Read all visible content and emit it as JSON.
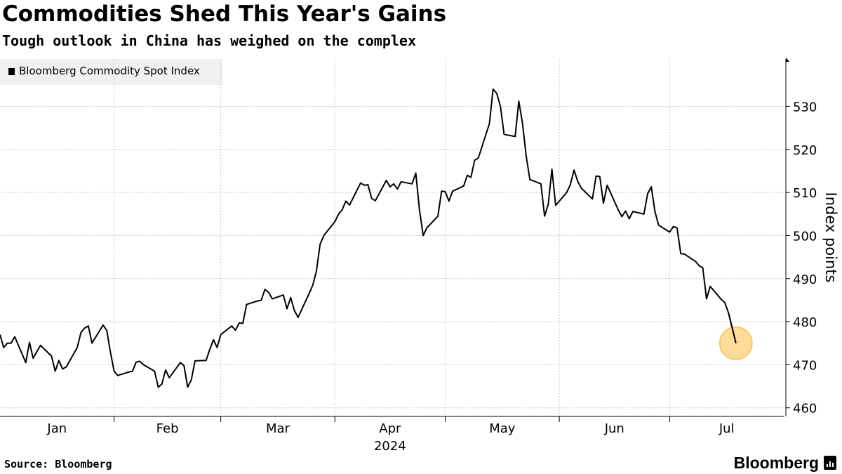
{
  "header": {
    "title": "Commodities Shed This Year's Gains",
    "subtitle": "Tough outlook in China has weighed on the complex"
  },
  "legend": {
    "label": "Bloomberg Commodity Spot Index",
    "color": "#000000"
  },
  "footer": {
    "source": "Source: Bloomberg",
    "brand": "Bloomberg"
  },
  "colors": {
    "line": "#000000",
    "highlight": "#fbbf45",
    "grid": "#c8c8c8"
  },
  "chart_data": {
    "type": "line",
    "ylabel": "Index points",
    "year_label": "2024",
    "ylim": [
      458,
      541
    ],
    "yticks": [
      460,
      470,
      480,
      490,
      500,
      510,
      520,
      530
    ],
    "xlim": [
      "2024-01-01",
      "2024-07-31"
    ],
    "month_ticks": [
      "2024-01-01",
      "2024-02-01",
      "2024-03-01",
      "2024-04-01",
      "2024-05-01",
      "2024-06-01",
      "2024-07-01",
      "2024-08-01"
    ],
    "month_labels": [
      "Jan",
      "Feb",
      "Mar",
      "Apr",
      "May",
      "Jun",
      "Jul"
    ],
    "grid": true,
    "legend_position": "top-left",
    "highlight_last_point": true,
    "series": [
      {
        "name": "Bloomberg Commodity Spot Index",
        "points": [
          [
            "2024-01-01",
            477
          ],
          [
            "2024-01-02",
            474
          ],
          [
            "2024-01-03",
            475
          ],
          [
            "2024-01-04",
            475
          ],
          [
            "2024-01-05",
            476.5
          ],
          [
            "2024-01-08",
            470.5
          ],
          [
            "2024-01-09",
            475.2
          ],
          [
            "2024-01-10",
            471.5
          ],
          [
            "2024-01-11",
            473
          ],
          [
            "2024-01-12",
            474.5
          ],
          [
            "2024-01-15",
            472
          ],
          [
            "2024-01-16",
            468.5
          ],
          [
            "2024-01-17",
            471
          ],
          [
            "2024-01-18",
            469
          ],
          [
            "2024-01-19",
            469.5
          ],
          [
            "2024-01-22",
            474
          ],
          [
            "2024-01-23",
            477.5
          ],
          [
            "2024-01-24",
            478.5
          ],
          [
            "2024-01-25",
            479
          ],
          [
            "2024-01-26",
            475
          ],
          [
            "2024-01-29",
            479.2
          ],
          [
            "2024-01-30",
            478
          ],
          [
            "2024-01-31",
            473
          ],
          [
            "2024-02-01",
            468.5
          ],
          [
            "2024-02-02",
            467.5
          ],
          [
            "2024-02-05",
            468.3
          ],
          [
            "2024-02-06",
            468.5
          ],
          [
            "2024-02-07",
            470.6
          ],
          [
            "2024-02-08",
            470.8
          ],
          [
            "2024-02-09",
            470
          ],
          [
            "2024-02-12",
            468.5
          ],
          [
            "2024-02-13",
            464.8
          ],
          [
            "2024-02-14",
            465.5
          ],
          [
            "2024-02-15",
            468.8
          ],
          [
            "2024-02-16",
            467
          ],
          [
            "2024-02-19",
            470.5
          ],
          [
            "2024-02-20",
            469.8
          ],
          [
            "2024-02-21",
            464.8
          ],
          [
            "2024-02-22",
            466.5
          ],
          [
            "2024-02-23",
            470.9
          ],
          [
            "2024-02-26",
            471
          ],
          [
            "2024-02-27",
            473.5
          ],
          [
            "2024-02-28",
            475.8
          ],
          [
            "2024-02-29",
            474
          ],
          [
            "2024-03-01",
            477
          ],
          [
            "2024-03-04",
            479
          ],
          [
            "2024-03-05",
            478
          ],
          [
            "2024-03-06",
            479.7
          ],
          [
            "2024-03-07",
            479.6
          ],
          [
            "2024-03-08",
            484
          ],
          [
            "2024-03-11",
            484.8
          ],
          [
            "2024-03-12",
            485
          ],
          [
            "2024-03-13",
            487.5
          ],
          [
            "2024-03-14",
            486.8
          ],
          [
            "2024-03-15",
            485.3
          ],
          [
            "2024-03-18",
            486.2
          ],
          [
            "2024-03-19",
            483
          ],
          [
            "2024-03-20",
            485.6
          ],
          [
            "2024-03-21",
            482.6
          ],
          [
            "2024-03-22",
            481
          ],
          [
            "2024-03-25",
            486.5
          ],
          [
            "2024-03-26",
            488.5
          ],
          [
            "2024-03-27",
            491.8
          ],
          [
            "2024-03-28",
            498
          ],
          [
            "2024-03-29",
            500
          ],
          [
            "2024-04-01",
            503.2
          ],
          [
            "2024-04-02",
            505
          ],
          [
            "2024-04-03",
            506
          ],
          [
            "2024-04-04",
            508
          ],
          [
            "2024-04-05",
            507.1
          ],
          [
            "2024-04-08",
            512.2
          ],
          [
            "2024-04-09",
            511.7
          ],
          [
            "2024-04-10",
            511.8
          ],
          [
            "2024-04-11",
            508.6
          ],
          [
            "2024-04-12",
            508.1
          ],
          [
            "2024-04-15",
            512.8
          ],
          [
            "2024-04-16",
            511.3
          ],
          [
            "2024-04-17",
            512
          ],
          [
            "2024-04-18",
            510.8
          ],
          [
            "2024-04-19",
            512.5
          ],
          [
            "2024-04-22",
            512
          ],
          [
            "2024-04-23",
            514.5
          ],
          [
            "2024-04-24",
            506
          ],
          [
            "2024-04-25",
            500
          ],
          [
            "2024-04-26",
            501.8
          ],
          [
            "2024-04-29",
            504.5
          ],
          [
            "2024-04-30",
            510.3
          ],
          [
            "2024-05-01",
            510.2
          ],
          [
            "2024-05-02",
            508
          ],
          [
            "2024-05-03",
            510.3
          ],
          [
            "2024-05-06",
            511.5
          ],
          [
            "2024-05-07",
            514
          ],
          [
            "2024-05-08",
            513.5
          ],
          [
            "2024-05-09",
            517.5
          ],
          [
            "2024-05-10",
            518
          ],
          [
            "2024-05-13",
            526
          ],
          [
            "2024-05-14",
            534
          ],
          [
            "2024-05-15",
            533
          ],
          [
            "2024-05-16",
            530
          ],
          [
            "2024-05-17",
            523.5
          ],
          [
            "2024-05-20",
            523
          ],
          [
            "2024-05-21",
            531.2
          ],
          [
            "2024-05-22",
            526
          ],
          [
            "2024-05-23",
            518.5
          ],
          [
            "2024-05-24",
            513
          ],
          [
            "2024-05-27",
            512
          ],
          [
            "2024-05-28",
            504.5
          ],
          [
            "2024-05-29",
            507.3
          ],
          [
            "2024-05-30",
            515.4
          ],
          [
            "2024-05-31",
            507
          ],
          [
            "2024-06-03",
            510
          ],
          [
            "2024-06-04",
            511.8
          ],
          [
            "2024-06-05",
            515.2
          ],
          [
            "2024-06-06",
            512.6
          ],
          [
            "2024-06-07",
            511
          ],
          [
            "2024-06-10",
            508.5
          ],
          [
            "2024-06-11",
            513.8
          ],
          [
            "2024-06-12",
            513.7
          ],
          [
            "2024-06-13",
            507.5
          ],
          [
            "2024-06-14",
            511.7
          ],
          [
            "2024-06-17",
            506
          ],
          [
            "2024-06-18",
            504.4
          ],
          [
            "2024-06-19",
            505.7
          ],
          [
            "2024-06-20",
            503.9
          ],
          [
            "2024-06-21",
            505.6
          ],
          [
            "2024-06-24",
            505
          ],
          [
            "2024-06-25",
            509.7
          ],
          [
            "2024-06-26",
            511.3
          ],
          [
            "2024-06-27",
            505.5
          ],
          [
            "2024-06-28",
            502.4
          ],
          [
            "2024-07-01",
            500.8
          ],
          [
            "2024-07-02",
            502.1
          ],
          [
            "2024-07-03",
            501.8
          ],
          [
            "2024-07-04",
            495.8
          ],
          [
            "2024-07-05",
            495.7
          ],
          [
            "2024-07-08",
            494
          ],
          [
            "2024-07-09",
            493
          ],
          [
            "2024-07-10",
            492.5
          ],
          [
            "2024-07-11",
            485.3
          ],
          [
            "2024-07-12",
            488.2
          ],
          [
            "2024-07-15",
            485.2
          ],
          [
            "2024-07-16",
            484.4
          ],
          [
            "2024-07-17",
            482
          ],
          [
            "2024-07-18",
            478.5
          ],
          [
            "2024-07-19",
            475
          ]
        ]
      }
    ]
  }
}
